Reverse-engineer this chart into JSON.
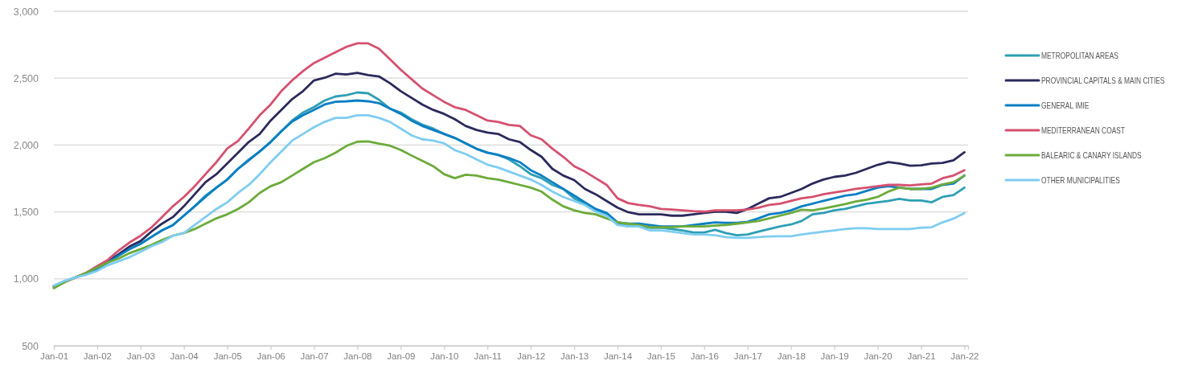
{
  "chart_data": {
    "type": "line",
    "x": [
      "2001-01",
      "2001-04",
      "2001-07",
      "2001-10",
      "2002-01",
      "2002-04",
      "2002-07",
      "2002-10",
      "2003-01",
      "2003-04",
      "2003-07",
      "2003-10",
      "2004-01",
      "2004-04",
      "2004-07",
      "2004-10",
      "2005-01",
      "2005-04",
      "2005-07",
      "2005-10",
      "2006-01",
      "2006-04",
      "2006-07",
      "2006-10",
      "2007-01",
      "2007-04",
      "2007-07",
      "2007-10",
      "2008-01",
      "2008-04",
      "2008-07",
      "2008-10",
      "2009-01",
      "2009-04",
      "2009-07",
      "2009-10",
      "2010-01",
      "2010-04",
      "2010-07",
      "2010-10",
      "2011-01",
      "2011-04",
      "2011-07",
      "2011-10",
      "2012-01",
      "2012-04",
      "2012-07",
      "2012-10",
      "2013-01",
      "2013-04",
      "2013-07",
      "2013-10",
      "2014-01",
      "2014-04",
      "2014-07",
      "2014-10",
      "2015-01",
      "2015-04",
      "2015-07",
      "2015-10",
      "2016-01",
      "2016-04",
      "2016-07",
      "2016-10",
      "2017-01",
      "2017-04",
      "2017-07",
      "2017-10",
      "2018-01",
      "2018-04",
      "2018-07",
      "2018-10",
      "2019-01",
      "2019-04",
      "2019-07",
      "2019-10",
      "2020-01",
      "2020-04",
      "2020-07",
      "2020-10",
      "2021-01",
      "2021-04",
      "2021-07",
      "2021-10",
      "2022-01"
    ],
    "series": [
      {
        "name": "METROPOLITAN AREAS",
        "color": "#2e9fb5",
        "values": [
          945,
          980,
          1010,
          1040,
          1075,
          1122,
          1174,
          1222,
          1262,
          1312,
          1362,
          1402,
          1472,
          1542,
          1622,
          1682,
          1742,
          1822,
          1892,
          1952,
          2023,
          2103,
          2183,
          2243,
          2283,
          2333,
          2363,
          2373,
          2393,
          2387,
          2339,
          2273,
          2243,
          2193,
          2153,
          2123,
          2083,
          2053,
          2013,
          1972,
          1943,
          1926,
          1893,
          1842,
          1782,
          1752,
          1702,
          1672,
          1602,
          1562,
          1512,
          1482,
          1412,
          1392,
          1392,
          1382,
          1382,
          1372,
          1362,
          1346,
          1346,
          1366,
          1342,
          1326,
          1332,
          1352,
          1372,
          1392,
          1406,
          1432,
          1482,
          1492,
          1512,
          1522,
          1542,
          1562,
          1572,
          1582,
          1598,
          1586,
          1586,
          1572,
          1612,
          1626,
          1682
        ]
      },
      {
        "name": "PROVINCIAL CAPITALS & MAIN CITIES",
        "color": "#2b2a5c",
        "values": [
          945,
          980,
          1010,
          1040,
          1080,
          1132,
          1184,
          1242,
          1282,
          1352,
          1412,
          1462,
          1542,
          1632,
          1722,
          1782,
          1862,
          1942,
          2023,
          2083,
          2183,
          2263,
          2343,
          2403,
          2483,
          2503,
          2533,
          2527,
          2539,
          2523,
          2513,
          2463,
          2403,
          2353,
          2303,
          2263,
          2233,
          2193,
          2143,
          2113,
          2093,
          2083,
          2043,
          2023,
          1963,
          1912,
          1822,
          1772,
          1738,
          1672,
          1632,
          1582,
          1532,
          1498,
          1482,
          1482,
          1482,
          1472,
          1472,
          1482,
          1492,
          1502,
          1502,
          1492,
          1522,
          1562,
          1602,
          1612,
          1642,
          1672,
          1712,
          1742,
          1762,
          1772,
          1792,
          1822,
          1852,
          1872,
          1862,
          1846,
          1848,
          1862,
          1866,
          1886,
          1946
        ]
      },
      {
        "name": "GENERAL IMIE",
        "color": "#0c7fc4",
        "values": [
          945,
          980,
          1010,
          1040,
          1075,
          1122,
          1174,
          1222,
          1262,
          1312,
          1362,
          1402,
          1472,
          1542,
          1612,
          1682,
          1742,
          1822,
          1885,
          1952,
          2023,
          2103,
          2175,
          2223,
          2263,
          2303,
          2323,
          2327,
          2333,
          2327,
          2313,
          2273,
          2233,
          2183,
          2143,
          2113,
          2083,
          2053,
          2013,
          1972,
          1943,
          1926,
          1903,
          1872,
          1812,
          1772,
          1722,
          1672,
          1622,
          1572,
          1522,
          1492,
          1422,
          1412,
          1412,
          1402,
          1392,
          1392,
          1392,
          1402,
          1412,
          1422,
          1418,
          1418,
          1426,
          1452,
          1482,
          1492,
          1512,
          1542,
          1562,
          1582,
          1602,
          1622,
          1632,
          1658,
          1682,
          1692,
          1682,
          1672,
          1672,
          1672,
          1702,
          1712,
          1772
        ]
      },
      {
        "name": "MEDITERRANEAN COAST",
        "color": "#d5516f",
        "values": [
          935,
          975,
          1010,
          1045,
          1095,
          1142,
          1212,
          1272,
          1322,
          1382,
          1462,
          1542,
          1612,
          1692,
          1782,
          1872,
          1975,
          2030,
          2123,
          2223,
          2303,
          2403,
          2483,
          2553,
          2613,
          2653,
          2694,
          2734,
          2760,
          2760,
          2720,
          2643,
          2563,
          2493,
          2423,
          2373,
          2323,
          2283,
          2263,
          2223,
          2183,
          2173,
          2150,
          2143,
          2073,
          2043,
          1973,
          1912,
          1842,
          1802,
          1752,
          1702,
          1602,
          1566,
          1552,
          1542,
          1522,
          1518,
          1512,
          1506,
          1502,
          1512,
          1512,
          1512,
          1518,
          1532,
          1552,
          1562,
          1582,
          1602,
          1612,
          1632,
          1646,
          1658,
          1672,
          1682,
          1692,
          1702,
          1702,
          1698,
          1706,
          1712,
          1752,
          1772,
          1812
        ]
      },
      {
        "name": "BALEARIC & CANARY ISLANDS",
        "color": "#6cab3b",
        "values": [
          930,
          975,
          1010,
          1045,
          1085,
          1122,
          1152,
          1192,
          1222,
          1252,
          1290,
          1322,
          1342,
          1372,
          1412,
          1452,
          1482,
          1522,
          1572,
          1642,
          1692,
          1722,
          1772,
          1822,
          1872,
          1902,
          1942,
          1993,
          2025,
          2027,
          2010,
          1995,
          1963,
          1922,
          1882,
          1842,
          1782,
          1752,
          1778,
          1772,
          1752,
          1742,
          1722,
          1702,
          1682,
          1652,
          1592,
          1542,
          1512,
          1492,
          1482,
          1452,
          1422,
          1412,
          1402,
          1386,
          1386,
          1386,
          1392,
          1392,
          1392,
          1398,
          1402,
          1412,
          1422,
          1432,
          1452,
          1472,
          1492,
          1516,
          1512,
          1526,
          1542,
          1558,
          1578,
          1592,
          1612,
          1652,
          1682,
          1672,
          1672,
          1682,
          1706,
          1722,
          1772
        ]
      },
      {
        "name": "OTHER MUNICIPALITIES",
        "color": "#7fcdf1",
        "values": [
          950,
          985,
          1010,
          1030,
          1060,
          1102,
          1132,
          1162,
          1202,
          1242,
          1275,
          1322,
          1342,
          1402,
          1462,
          1522,
          1572,
          1642,
          1702,
          1782,
          1872,
          1952,
          2033,
          2083,
          2133,
          2173,
          2203,
          2203,
          2223,
          2223,
          2203,
          2173,
          2123,
          2073,
          2043,
          2033,
          2013,
          1962,
          1933,
          1892,
          1853,
          1832,
          1802,
          1772,
          1742,
          1702,
          1652,
          1612,
          1582,
          1552,
          1502,
          1472,
          1402,
          1392,
          1392,
          1362,
          1362,
          1352,
          1342,
          1332,
          1332,
          1326,
          1312,
          1306,
          1306,
          1312,
          1316,
          1318,
          1318,
          1332,
          1342,
          1352,
          1362,
          1372,
          1378,
          1378,
          1372,
          1372,
          1372,
          1372,
          1382,
          1386,
          1422,
          1450,
          1492
        ]
      }
    ],
    "xlim": [
      "2001-01",
      "2022-02"
    ],
    "xticks": [
      {
        "value": "2001-01",
        "label": "Jan-01"
      },
      {
        "value": "2002-01",
        "label": "Jan-02"
      },
      {
        "value": "2003-01",
        "label": "Jan-03"
      },
      {
        "value": "2004-01",
        "label": "Jan-04"
      },
      {
        "value": "2005-01",
        "label": "Jan-05"
      },
      {
        "value": "2006-01",
        "label": "Jan-06"
      },
      {
        "value": "2007-01",
        "label": "Jan-07"
      },
      {
        "value": "2008-01",
        "label": "Jan-08"
      },
      {
        "value": "2009-01",
        "label": "Jan-09"
      },
      {
        "value": "2010-01",
        "label": "Jan-10"
      },
      {
        "value": "2011-01",
        "label": "Jan-11"
      },
      {
        "value": "2012-01",
        "label": "Jan-12"
      },
      {
        "value": "2013-01",
        "label": "Jan-13"
      },
      {
        "value": "2014-01",
        "label": "Jan-14"
      },
      {
        "value": "2015-01",
        "label": "Jan-15"
      },
      {
        "value": "2016-01",
        "label": "Jan-16"
      },
      {
        "value": "2017-01",
        "label": "Jan-17"
      },
      {
        "value": "2018-01",
        "label": "Jan-18"
      },
      {
        "value": "2019-01",
        "label": "Jan-19"
      },
      {
        "value": "2020-01",
        "label": "Jan-20"
      },
      {
        "value": "2021-01",
        "label": "Jan-21"
      },
      {
        "value": "2022-01",
        "label": "Jan-22"
      }
    ],
    "ylim": [
      500,
      3000
    ],
    "yticks": [
      500,
      {
        "value": 1000,
        "label": "1,000"
      },
      {
        "value": 1500,
        "label": "1,500"
      },
      {
        "value": 2000,
        "label": "2,000"
      },
      {
        "value": 2500,
        "label": "2,500"
      },
      {
        "value": 3000,
        "label": "3,000"
      }
    ],
    "grid": "y",
    "legend": "right",
    "marker": "none",
    "line_style": "solid"
  }
}
